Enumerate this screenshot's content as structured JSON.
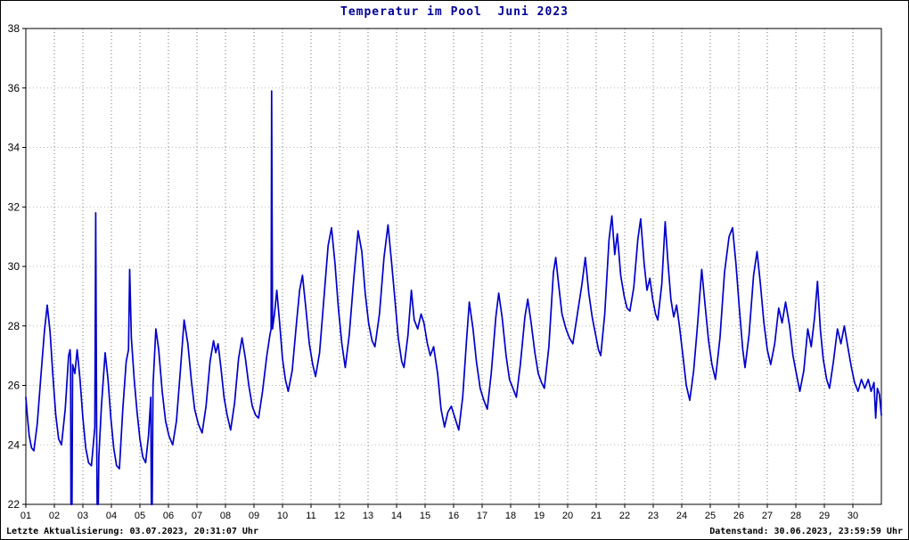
{
  "title": "Temperatur im Pool  Juni 2023",
  "footer": {
    "left": "Letzte Aktualisierung: 03.07.2023, 20:31:07 Uhr",
    "right": "Datenstand: 30.06.2023, 23:59:59 Uhr"
  },
  "colors": {
    "line": "#0000cc",
    "title": "#000099",
    "grid_vertical": "#707070",
    "grid_horizontal": "#b8b8b8",
    "axis": "#000000",
    "background": "#ffffff"
  },
  "chart_data": {
    "type": "line",
    "title": "Temperatur im Pool  Juni 2023",
    "xlabel": "",
    "ylabel": "",
    "xlim": [
      1,
      31
    ],
    "ylim": [
      22,
      38
    ],
    "grid": true,
    "legend": false,
    "y_ticks": [
      22,
      24,
      26,
      28,
      30,
      32,
      34,
      36,
      38
    ],
    "x_ticks": [
      1,
      2,
      3,
      4,
      5,
      6,
      7,
      8,
      9,
      10,
      11,
      12,
      13,
      14,
      15,
      16,
      17,
      18,
      19,
      20,
      21,
      22,
      23,
      24,
      25,
      26,
      27,
      28,
      29,
      30
    ],
    "x_ticklabels": [
      "01",
      "02",
      "03",
      "04",
      "05",
      "06",
      "07",
      "08",
      "09",
      "10",
      "11",
      "12",
      "13",
      "14",
      "15",
      "16",
      "17",
      "18",
      "19",
      "20",
      "21",
      "22",
      "23",
      "24",
      "25",
      "26",
      "27",
      "28",
      "29",
      "30"
    ],
    "series": [
      {
        "name": "pool-temperatur-celsius",
        "color": "#0000cc",
        "points": [
          [
            1.0,
            25.6
          ],
          [
            1.05,
            25.0
          ],
          [
            1.12,
            24.3
          ],
          [
            1.2,
            23.9
          ],
          [
            1.28,
            23.8
          ],
          [
            1.4,
            24.7
          ],
          [
            1.52,
            26.2
          ],
          [
            1.65,
            27.8
          ],
          [
            1.75,
            28.7
          ],
          [
            1.85,
            27.8
          ],
          [
            1.95,
            26.3
          ],
          [
            2.05,
            25.0
          ],
          [
            2.15,
            24.2
          ],
          [
            2.25,
            24.0
          ],
          [
            2.38,
            25.2
          ],
          [
            2.5,
            27.0
          ],
          [
            2.55,
            27.2
          ],
          [
            2.57,
            26.9
          ],
          [
            2.58,
            22.0
          ],
          [
            2.62,
            22.0
          ],
          [
            2.64,
            26.7
          ],
          [
            2.72,
            26.4
          ],
          [
            2.8,
            27.2
          ],
          [
            2.9,
            26.2
          ],
          [
            3.0,
            24.9
          ],
          [
            3.1,
            23.9
          ],
          [
            3.2,
            23.4
          ],
          [
            3.3,
            23.3
          ],
          [
            3.42,
            24.6
          ],
          [
            3.45,
            31.8
          ],
          [
            3.48,
            24.8
          ],
          [
            3.5,
            22.0
          ],
          [
            3.54,
            22.0
          ],
          [
            3.56,
            23.6
          ],
          [
            3.65,
            25.3
          ],
          [
            3.78,
            27.1
          ],
          [
            3.88,
            26.2
          ],
          [
            3.98,
            24.9
          ],
          [
            4.08,
            23.9
          ],
          [
            4.18,
            23.3
          ],
          [
            4.28,
            23.2
          ],
          [
            4.4,
            25.2
          ],
          [
            4.52,
            26.8
          ],
          [
            4.6,
            27.2
          ],
          [
            4.64,
            29.9
          ],
          [
            4.7,
            27.6
          ],
          [
            4.8,
            26.2
          ],
          [
            4.9,
            25.1
          ],
          [
            5.0,
            24.2
          ],
          [
            5.1,
            23.6
          ],
          [
            5.2,
            23.4
          ],
          [
            5.3,
            24.3
          ],
          [
            5.38,
            25.6
          ],
          [
            5.4,
            22.0
          ],
          [
            5.43,
            22.0
          ],
          [
            5.46,
            26.0
          ],
          [
            5.56,
            27.9
          ],
          [
            5.66,
            27.2
          ],
          [
            5.78,
            25.8
          ],
          [
            5.9,
            24.8
          ],
          [
            6.02,
            24.3
          ],
          [
            6.15,
            24.0
          ],
          [
            6.28,
            24.8
          ],
          [
            6.42,
            26.5
          ],
          [
            6.55,
            28.2
          ],
          [
            6.68,
            27.4
          ],
          [
            6.8,
            26.2
          ],
          [
            6.92,
            25.2
          ],
          [
            7.05,
            24.7
          ],
          [
            7.18,
            24.4
          ],
          [
            7.32,
            25.3
          ],
          [
            7.46,
            26.8
          ],
          [
            7.58,
            27.5
          ],
          [
            7.66,
            27.1
          ],
          [
            7.74,
            27.4
          ],
          [
            7.84,
            26.6
          ],
          [
            7.95,
            25.6
          ],
          [
            8.06,
            25.0
          ],
          [
            8.18,
            24.5
          ],
          [
            8.32,
            25.4
          ],
          [
            8.46,
            26.9
          ],
          [
            8.58,
            27.6
          ],
          [
            8.7,
            26.9
          ],
          [
            8.82,
            26.0
          ],
          [
            8.94,
            25.3
          ],
          [
            9.06,
            25.0
          ],
          [
            9.16,
            24.9
          ],
          [
            9.3,
            25.8
          ],
          [
            9.45,
            27.0
          ],
          [
            9.56,
            27.7
          ],
          [
            9.6,
            27.9
          ],
          [
            9.62,
            35.9
          ],
          [
            9.65,
            27.9
          ],
          [
            9.72,
            28.4
          ],
          [
            9.8,
            29.2
          ],
          [
            9.9,
            28.1
          ],
          [
            10.0,
            26.9
          ],
          [
            10.1,
            26.2
          ],
          [
            10.2,
            25.8
          ],
          [
            10.34,
            26.5
          ],
          [
            10.48,
            28.0
          ],
          [
            10.6,
            29.2
          ],
          [
            10.7,
            29.7
          ],
          [
            10.82,
            28.6
          ],
          [
            10.94,
            27.4
          ],
          [
            11.06,
            26.7
          ],
          [
            11.16,
            26.3
          ],
          [
            11.3,
            27.1
          ],
          [
            11.45,
            28.9
          ],
          [
            11.6,
            30.7
          ],
          [
            11.72,
            31.3
          ],
          [
            11.84,
            30.1
          ],
          [
            11.96,
            28.6
          ],
          [
            12.08,
            27.4
          ],
          [
            12.2,
            26.6
          ],
          [
            12.34,
            27.7
          ],
          [
            12.5,
            29.6
          ],
          [
            12.65,
            31.2
          ],
          [
            12.78,
            30.5
          ],
          [
            12.9,
            29.1
          ],
          [
            13.02,
            28.1
          ],
          [
            13.14,
            27.5
          ],
          [
            13.24,
            27.3
          ],
          [
            13.4,
            28.4
          ],
          [
            13.56,
            30.3
          ],
          [
            13.7,
            31.4
          ],
          [
            13.82,
            30.2
          ],
          [
            13.94,
            28.9
          ],
          [
            14.06,
            27.6
          ],
          [
            14.18,
            26.8
          ],
          [
            14.26,
            26.6
          ],
          [
            14.4,
            27.7
          ],
          [
            14.52,
            29.2
          ],
          [
            14.62,
            28.2
          ],
          [
            14.74,
            27.9
          ],
          [
            14.86,
            28.4
          ],
          [
            14.96,
            28.1
          ],
          [
            15.08,
            27.4
          ],
          [
            15.18,
            27.0
          ],
          [
            15.3,
            27.3
          ],
          [
            15.44,
            26.4
          ],
          [
            15.56,
            25.2
          ],
          [
            15.68,
            24.6
          ],
          [
            15.8,
            25.1
          ],
          [
            15.92,
            25.3
          ],
          [
            16.05,
            24.9
          ],
          [
            16.18,
            24.5
          ],
          [
            16.32,
            25.6
          ],
          [
            16.46,
            27.6
          ],
          [
            16.55,
            28.8
          ],
          [
            16.68,
            27.9
          ],
          [
            16.8,
            26.8
          ],
          [
            16.93,
            25.9
          ],
          [
            17.06,
            25.5
          ],
          [
            17.18,
            25.2
          ],
          [
            17.32,
            26.4
          ],
          [
            17.48,
            28.3
          ],
          [
            17.58,
            29.1
          ],
          [
            17.7,
            28.3
          ],
          [
            17.84,
            27.0
          ],
          [
            17.96,
            26.2
          ],
          [
            18.08,
            25.9
          ],
          [
            18.2,
            25.6
          ],
          [
            18.34,
            26.7
          ],
          [
            18.5,
            28.3
          ],
          [
            18.6,
            28.9
          ],
          [
            18.72,
            28.1
          ],
          [
            18.85,
            27.1
          ],
          [
            18.97,
            26.4
          ],
          [
            19.08,
            26.1
          ],
          [
            19.18,
            25.9
          ],
          [
            19.34,
            27.3
          ],
          [
            19.5,
            29.8
          ],
          [
            19.58,
            30.3
          ],
          [
            19.68,
            29.4
          ],
          [
            19.8,
            28.4
          ],
          [
            19.94,
            27.9
          ],
          [
            20.06,
            27.6
          ],
          [
            20.18,
            27.4
          ],
          [
            20.34,
            28.4
          ],
          [
            20.5,
            29.4
          ],
          [
            20.62,
            30.3
          ],
          [
            20.74,
            29.1
          ],
          [
            20.86,
            28.3
          ],
          [
            20.96,
            27.8
          ],
          [
            21.08,
            27.2
          ],
          [
            21.16,
            27.0
          ],
          [
            21.3,
            28.4
          ],
          [
            21.45,
            30.9
          ],
          [
            21.55,
            31.7
          ],
          [
            21.65,
            30.4
          ],
          [
            21.74,
            31.1
          ],
          [
            21.86,
            29.7
          ],
          [
            21.98,
            29.0
          ],
          [
            22.08,
            28.6
          ],
          [
            22.18,
            28.5
          ],
          [
            22.32,
            29.3
          ],
          [
            22.46,
            30.9
          ],
          [
            22.56,
            31.6
          ],
          [
            22.68,
            30.1
          ],
          [
            22.78,
            29.2
          ],
          [
            22.88,
            29.6
          ],
          [
            22.98,
            28.9
          ],
          [
            23.08,
            28.4
          ],
          [
            23.16,
            28.2
          ],
          [
            23.3,
            29.4
          ],
          [
            23.42,
            31.5
          ],
          [
            23.52,
            30.1
          ],
          [
            23.62,
            28.9
          ],
          [
            23.72,
            28.3
          ],
          [
            23.82,
            28.7
          ],
          [
            23.92,
            28.0
          ],
          [
            24.04,
            27.0
          ],
          [
            24.16,
            26.0
          ],
          [
            24.28,
            25.5
          ],
          [
            24.42,
            26.5
          ],
          [
            24.56,
            28.1
          ],
          [
            24.7,
            29.9
          ],
          [
            24.82,
            28.7
          ],
          [
            24.94,
            27.5
          ],
          [
            25.06,
            26.7
          ],
          [
            25.18,
            26.2
          ],
          [
            25.34,
            27.6
          ],
          [
            25.5,
            29.8
          ],
          [
            25.66,
            31.0
          ],
          [
            25.78,
            31.3
          ],
          [
            25.9,
            30.1
          ],
          [
            26.02,
            28.6
          ],
          [
            26.14,
            27.2
          ],
          [
            26.22,
            26.6
          ],
          [
            26.36,
            27.7
          ],
          [
            26.52,
            29.7
          ],
          [
            26.64,
            30.5
          ],
          [
            26.76,
            29.4
          ],
          [
            26.88,
            28.1
          ],
          [
            27.0,
            27.2
          ],
          [
            27.12,
            26.7
          ],
          [
            27.26,
            27.4
          ],
          [
            27.4,
            28.6
          ],
          [
            27.52,
            28.1
          ],
          [
            27.64,
            28.8
          ],
          [
            27.78,
            28.0
          ],
          [
            27.9,
            27.0
          ],
          [
            28.02,
            26.4
          ],
          [
            28.14,
            25.8
          ],
          [
            28.28,
            26.5
          ],
          [
            28.42,
            27.9
          ],
          [
            28.54,
            27.3
          ],
          [
            28.66,
            28.3
          ],
          [
            28.76,
            29.5
          ],
          [
            28.86,
            27.9
          ],
          [
            28.96,
            26.9
          ],
          [
            29.08,
            26.2
          ],
          [
            29.18,
            25.9
          ],
          [
            29.32,
            26.8
          ],
          [
            29.46,
            27.9
          ],
          [
            29.58,
            27.4
          ],
          [
            29.7,
            28.0
          ],
          [
            29.84,
            27.2
          ],
          [
            29.95,
            26.6
          ],
          [
            30.06,
            26.1
          ],
          [
            30.18,
            25.8
          ],
          [
            30.3,
            26.2
          ],
          [
            30.42,
            25.9
          ],
          [
            30.54,
            26.2
          ],
          [
            30.64,
            25.8
          ],
          [
            30.74,
            26.1
          ],
          [
            30.8,
            24.9
          ],
          [
            30.86,
            25.9
          ],
          [
            30.93,
            25.7
          ],
          [
            31.0,
            25.0
          ]
        ]
      }
    ]
  }
}
